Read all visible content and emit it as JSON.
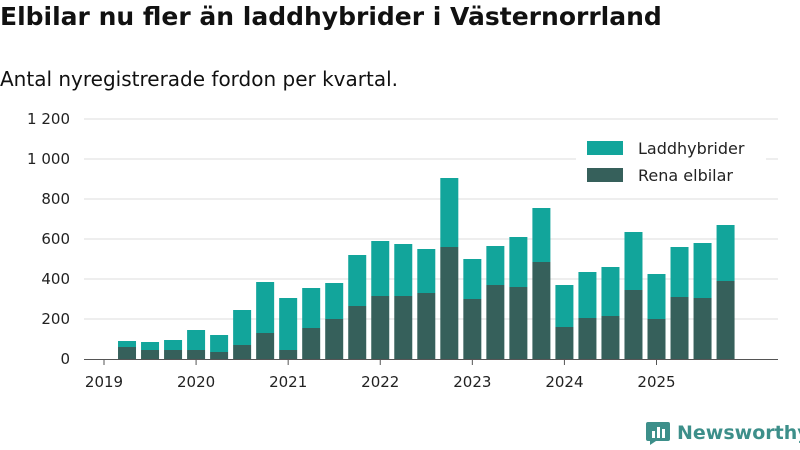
{
  "colors": {
    "phev": "#12a59b",
    "bev": "#36605b",
    "grid": "#dddddd",
    "axis": "#555555"
  },
  "brand": {
    "name": "Newsworthy",
    "logo_icon": "newsworthy-chart-icon"
  },
  "chart_data": {
    "type": "bar",
    "stacked": true,
    "title": "Elbilar nu fler än laddhybrider i Västernorrland",
    "subtitle": "Antal nyregistrerade fordon per kvartal.",
    "xlabel": "",
    "ylabel": "",
    "ylim": [
      0,
      1200
    ],
    "yticks": [
      0,
      200,
      400,
      600,
      800,
      1000,
      1200
    ],
    "ytick_labels": [
      "0",
      "200",
      "400",
      "600",
      "800",
      "1 000",
      "1 200"
    ],
    "xlim": [
      2019.0,
      2026.2
    ],
    "xticks": [
      2019,
      2020,
      2021,
      2022,
      2023,
      2024,
      2025
    ],
    "xtick_labels": [
      "2019",
      "2020",
      "2021",
      "2022",
      "2023",
      "2024",
      "2025"
    ],
    "grid": true,
    "legend_position": "top-right",
    "categories": [
      "2019Q2",
      "2019Q3",
      "2019Q4",
      "2020Q1",
      "2020Q2",
      "2020Q3",
      "2020Q4",
      "2021Q1",
      "2021Q2",
      "2021Q3",
      "2021Q4",
      "2022Q1",
      "2022Q2",
      "2022Q3",
      "2022Q4",
      "2023Q1",
      "2023Q2",
      "2023Q3",
      "2023Q4",
      "2024Q1",
      "2024Q2",
      "2024Q3",
      "2024Q4",
      "2025Q1",
      "2025Q2",
      "2025Q3",
      "2025Q4"
    ],
    "x": [
      2019.25,
      2019.5,
      2019.75,
      2020.0,
      2020.25,
      2020.5,
      2020.75,
      2021.0,
      2021.25,
      2021.5,
      2021.75,
      2022.0,
      2022.25,
      2022.5,
      2022.75,
      2023.0,
      2023.25,
      2023.5,
      2023.75,
      2024.0,
      2024.25,
      2024.5,
      2024.75,
      2025.0,
      2025.25,
      2025.5,
      2025.75
    ],
    "series": [
      {
        "name": "Rena elbilar",
        "color": "#36605b",
        "values": [
          60,
          45,
          45,
          45,
          35,
          70,
          130,
          45,
          155,
          200,
          265,
          315,
          315,
          330,
          560,
          300,
          370,
          360,
          485,
          160,
          205,
          215,
          345,
          200,
          310,
          305,
          390
        ]
      },
      {
        "name": "Laddhybrider",
        "color": "#12a59b",
        "values": [
          30,
          40,
          50,
          100,
          85,
          175,
          255,
          260,
          200,
          180,
          255,
          275,
          260,
          220,
          345,
          200,
          195,
          250,
          270,
          210,
          230,
          245,
          290,
          225,
          250,
          275,
          280
        ]
      }
    ],
    "legend": [
      "Laddhybrider",
      "Rena elbilar"
    ]
  }
}
